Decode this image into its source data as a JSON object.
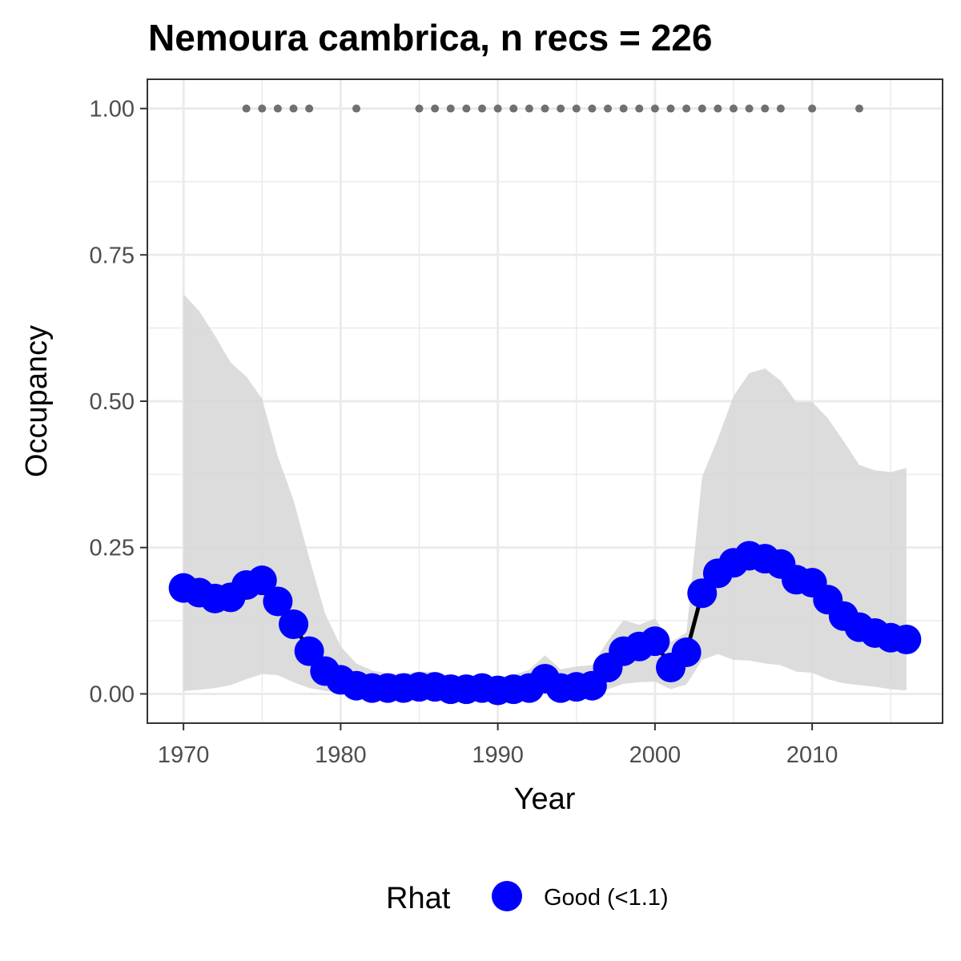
{
  "chart_data": {
    "type": "line",
    "title": "Nemoura cambrica, n recs = 226",
    "xlabel": "Year",
    "ylabel": "Occupancy",
    "xlim": [
      1967.7,
      2018.3
    ],
    "ylim": [
      -0.05,
      1.05
    ],
    "x_ticks": [
      1970,
      1980,
      1990,
      2000,
      2010
    ],
    "x_tick_labels": [
      "1970",
      "1980",
      "1990",
      "2000",
      "2010"
    ],
    "y_ticks": [
      0,
      0.25,
      0.5,
      0.75,
      1.0
    ],
    "y_tick_labels": [
      "0.00",
      "0.25",
      "0.50",
      "0.75",
      "1.00"
    ],
    "grid": true,
    "legend": {
      "position": "bottom",
      "title": "Rhat",
      "entries": [
        {
          "label": "Good (<1.1)",
          "color": "#0000ff"
        }
      ]
    },
    "colors": {
      "points": "#0000ff",
      "line": "#000000",
      "ribbon": "#d6d6d6",
      "record_points": "#707070",
      "grid": "#ebebeb",
      "panel_border": "#333333"
    },
    "series": [
      {
        "x": [
          1970,
          1971,
          1972,
          1973,
          1974,
          1975,
          1976,
          1977,
          1978,
          1979,
          1980,
          1981,
          1982,
          1983,
          1984,
          1985,
          1986,
          1987,
          1988,
          1989,
          1990,
          1991,
          1992,
          1993,
          1994,
          1995,
          1996,
          1997,
          1998,
          1999,
          2000,
          2001,
          2002,
          2003,
          2004,
          2005,
          2006,
          2007,
          2008,
          2009,
          2010,
          2011,
          2012,
          2013,
          2014,
          2015,
          2016
        ],
        "y": [
          0.181,
          0.173,
          0.163,
          0.165,
          0.186,
          0.194,
          0.158,
          0.119,
          0.073,
          0.039,
          0.024,
          0.014,
          0.01,
          0.01,
          0.01,
          0.012,
          0.012,
          0.008,
          0.008,
          0.01,
          0.006,
          0.008,
          0.01,
          0.026,
          0.01,
          0.012,
          0.014,
          0.045,
          0.073,
          0.081,
          0.09,
          0.045,
          0.071,
          0.172,
          0.206,
          0.224,
          0.236,
          0.231,
          0.222,
          0.195,
          0.19,
          0.161,
          0.133,
          0.114,
          0.104,
          0.096,
          0.093
        ],
        "lower": [
          0.005,
          0.007,
          0.01,
          0.015,
          0.025,
          0.034,
          0.032,
          0.02,
          0.01,
          0.005,
          0.002,
          0.001,
          0.001,
          0.001,
          0.001,
          0.001,
          0.001,
          0.001,
          0.001,
          0.001,
          0.001,
          0.001,
          0.001,
          0.002,
          0.001,
          0.001,
          0.002,
          0.008,
          0.017,
          0.02,
          0.021,
          0.008,
          0.016,
          0.058,
          0.068,
          0.058,
          0.057,
          0.052,
          0.049,
          0.038,
          0.036,
          0.025,
          0.018,
          0.015,
          0.012,
          0.008,
          0.006
        ],
        "upper": [
          0.683,
          0.654,
          0.612,
          0.566,
          0.542,
          0.504,
          0.406,
          0.331,
          0.232,
          0.138,
          0.081,
          0.052,
          0.04,
          0.035,
          0.035,
          0.038,
          0.037,
          0.032,
          0.03,
          0.033,
          0.028,
          0.033,
          0.041,
          0.066,
          0.042,
          0.047,
          0.049,
          0.091,
          0.126,
          0.118,
          0.129,
          0.088,
          0.105,
          0.371,
          0.436,
          0.509,
          0.548,
          0.556,
          0.535,
          0.498,
          0.499,
          0.471,
          0.432,
          0.391,
          0.382,
          0.379,
          0.386
        ]
      }
    ],
    "records": {
      "y": 1.0,
      "x": [
        1974,
        1975,
        1976,
        1977,
        1978,
        1981,
        1985,
        1986,
        1987,
        1988,
        1989,
        1990,
        1991,
        1992,
        1993,
        1994,
        1995,
        1996,
        1997,
        1998,
        1999,
        2000,
        2001,
        2002,
        2003,
        2004,
        2005,
        2006,
        2007,
        2008,
        2010,
        2013
      ]
    }
  }
}
